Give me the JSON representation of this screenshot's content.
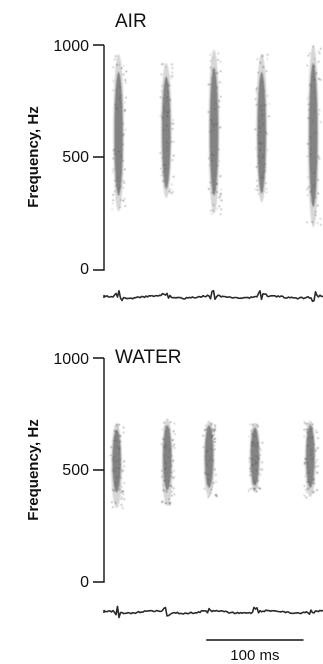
{
  "chart_data": [
    {
      "type": "spectrogram",
      "title": "AIR",
      "ylabel": "Frequency, Hz",
      "ylim": [
        0,
        1000
      ],
      "yticks": [
        0,
        500,
        1000
      ],
      "x_unit": "ms",
      "xlim": [
        0,
        225
      ],
      "ink_color": "#6a6a6a",
      "pulses": [
        {
          "t": 15,
          "f_low": 260,
          "f_high": 960,
          "core_low": 330,
          "core_high": 880
        },
        {
          "t": 64,
          "f_low": 320,
          "f_high": 920,
          "core_low": 360,
          "core_high": 860
        },
        {
          "t": 113,
          "f_low": 250,
          "f_high": 980,
          "core_low": 330,
          "core_high": 900
        },
        {
          "t": 162,
          "f_low": 300,
          "f_high": 960,
          "core_low": 340,
          "core_high": 880
        },
        {
          "t": 215,
          "f_low": 190,
          "f_high": 1000,
          "core_low": 280,
          "core_high": 920
        }
      ]
    },
    {
      "type": "spectrogram",
      "title": "WATER",
      "ylabel": "Frequency, Hz",
      "ylim": [
        0,
        1000
      ],
      "yticks": [
        0,
        500,
        1000
      ],
      "x_unit": "ms",
      "xlim": [
        0,
        225
      ],
      "ink_color": "#6a6a6a",
      "pulses": [
        {
          "t": 13,
          "f_low": 330,
          "f_high": 710,
          "core_low": 400,
          "core_high": 680
        },
        {
          "t": 65,
          "f_low": 340,
          "f_high": 730,
          "core_low": 410,
          "core_high": 700
        },
        {
          "t": 108,
          "f_low": 380,
          "f_high": 720,
          "core_low": 420,
          "core_high": 700
        },
        {
          "t": 155,
          "f_low": 400,
          "f_high": 710,
          "core_low": 430,
          "core_high": 690
        },
        {
          "t": 212,
          "f_low": 380,
          "f_high": 720,
          "core_low": 420,
          "core_high": 700
        }
      ]
    }
  ],
  "scale_bar": {
    "label": "100 ms",
    "value_ms": 100,
    "start_ms": 105
  }
}
